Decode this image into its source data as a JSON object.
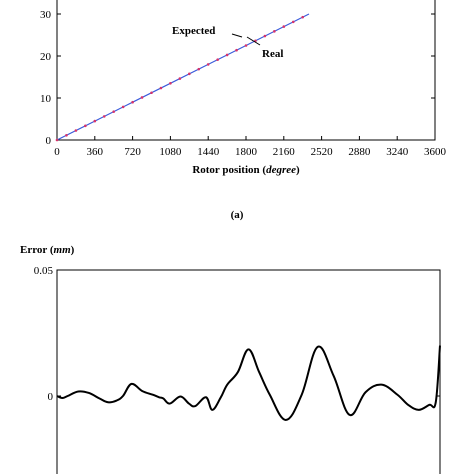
{
  "chart_data": [
    {
      "type": "line",
      "xlabel": "Rotor position",
      "xlabel_unit": "degree",
      "ylabel": "",
      "xlim": [
        0,
        3600
      ],
      "ylim": [
        0,
        35
      ],
      "x_ticks": [
        "0",
        "360",
        "720",
        "1080",
        "1440",
        "1800",
        "2160",
        "2520",
        "2880",
        "3240",
        "3600"
      ],
      "y_ticks": [
        "0",
        "10",
        "20",
        "30"
      ],
      "series": [
        {
          "name": "Expected",
          "color": "#3b5bdb",
          "x": [
            0,
            360,
            720,
            1080,
            1440,
            1800,
            2160,
            2400
          ],
          "y": [
            0,
            4.5,
            9,
            13.5,
            18,
            22.5,
            27,
            30
          ]
        },
        {
          "name": "Real",
          "color": "#d6336c",
          "marker": "dot",
          "x": [
            0,
            90,
            180,
            270,
            360,
            450,
            540,
            630,
            720,
            810,
            900,
            990,
            1080,
            1170,
            1260,
            1350,
            1440,
            1530,
            1620,
            1710,
            1800,
            1890,
            1980,
            2070,
            2160,
            2250,
            2340
          ],
          "y": [
            0,
            1.125,
            2.25,
            3.375,
            4.5,
            5.625,
            6.75,
            7.875,
            9,
            10.125,
            11.25,
            12.375,
            13.5,
            14.625,
            15.75,
            16.875,
            18,
            19.125,
            20.25,
            21.375,
            22.5,
            23.625,
            24.75,
            25.875,
            27,
            28.125,
            29.25
          ]
        }
      ],
      "annotations": [
        "Expected",
        "Real"
      ],
      "grid": false,
      "caption": "(a)"
    },
    {
      "type": "line",
      "ylabel": "Error",
      "ylabel_unit": "mm",
      "xlim": [
        0,
        3600
      ],
      "ylim": [
        -0.015,
        0.05
      ],
      "y_ticks": [
        "0.05",
        "0"
      ],
      "series": [
        {
          "color": "#000000",
          "x": [
            0,
            50,
            100,
            200,
            300,
            400,
            480,
            560,
            620,
            700,
            800,
            900,
            960,
            1000,
            1060,
            1160,
            1240,
            1300,
            1400,
            1460,
            1540,
            1600,
            1700,
            1800,
            1900,
            2000,
            2150,
            2300,
            2450,
            2600,
            2750,
            2900,
            3050,
            3200,
            3300,
            3400,
            3500,
            3560,
            3600
          ],
          "y": [
            0,
            -0.0008,
            0,
            0.0018,
            0.0012,
            -0.001,
            -0.0025,
            -0.0018,
            0,
            0.0048,
            0.002,
            0.0005,
            -0.0005,
            -0.001,
            -0.003,
            -0.0002,
            -0.003,
            -0.004,
            -0.0005,
            -0.0055,
            -0.0005,
            0.0045,
            0.0095,
            0.0185,
            0.0095,
            0.0005,
            -0.0095,
            0.0005,
            0.0195,
            0.008,
            -0.0075,
            0.0015,
            0.0045,
            0.0005,
            -0.0035,
            -0.0055,
            -0.0035,
            -0.0025,
            0.02
          ]
        }
      ],
      "grid": false
    }
  ]
}
